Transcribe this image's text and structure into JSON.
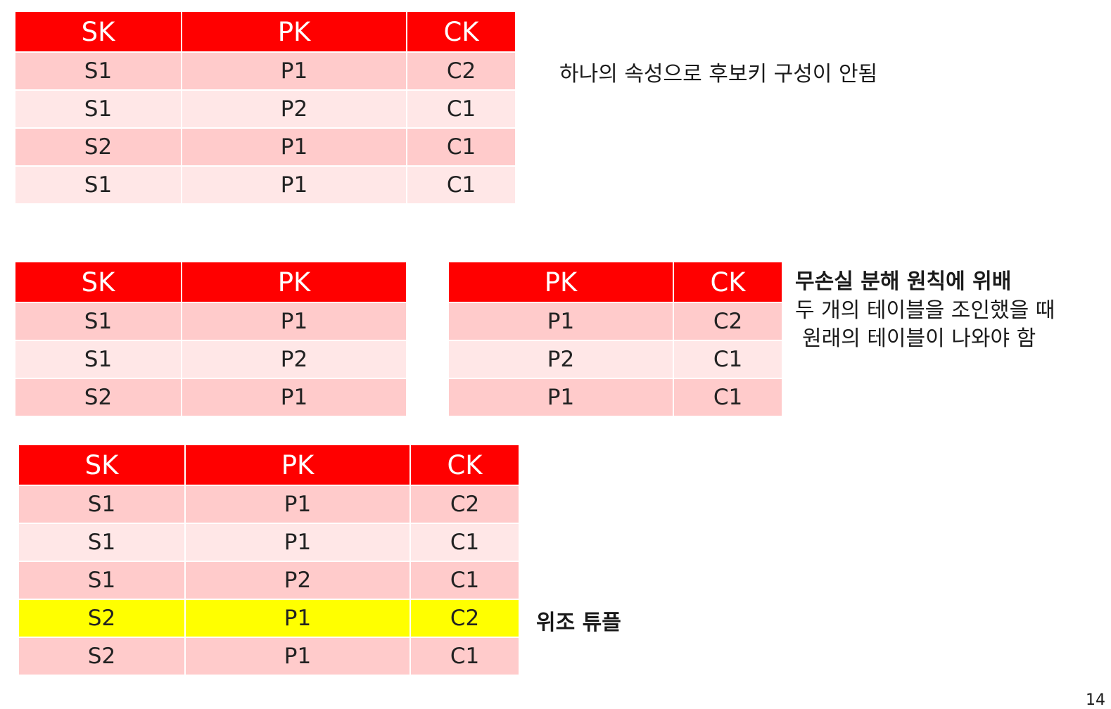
{
  "table1": {
    "headers": [
      "SK",
      "PK",
      "CK"
    ],
    "rows": [
      [
        "S1",
        "P1",
        "C2"
      ],
      [
        "S1",
        "P2",
        "C1"
      ],
      [
        "S2",
        "P1",
        "C1"
      ],
      [
        "S1",
        "P1",
        "C1"
      ]
    ]
  },
  "note1": "하나의 속성으로 후보키 구성이 안됨",
  "table2": {
    "headers": [
      "SK",
      "PK"
    ],
    "rows": [
      [
        "S1",
        "P1"
      ],
      [
        "S1",
        "P2"
      ],
      [
        "S2",
        "P1"
      ]
    ]
  },
  "table3": {
    "headers": [
      "PK",
      "CK"
    ],
    "rows": [
      [
        "P1",
        "C2"
      ],
      [
        "P2",
        "C1"
      ],
      [
        "P1",
        "C1"
      ]
    ]
  },
  "note2": {
    "title": "무손실 분해 원칙에 위배",
    "line1": "두 개의 테이블을 조인했을 때",
    "line2": "원래의 테이블이 나와야 함"
  },
  "table4": {
    "headers": [
      "SK",
      "PK",
      "CK"
    ],
    "rows": [
      [
        "S1",
        "P1",
        "C2"
      ],
      [
        "S1",
        "P1",
        "C1"
      ],
      [
        "S1",
        "P2",
        "C1"
      ],
      [
        "S2",
        "P1",
        "C2"
      ],
      [
        "S2",
        "P1",
        "C1"
      ]
    ]
  },
  "note3": "위조 튜플",
  "highlight_color": "#ffff00",
  "header_color": "#ff0000",
  "page_number": "14"
}
